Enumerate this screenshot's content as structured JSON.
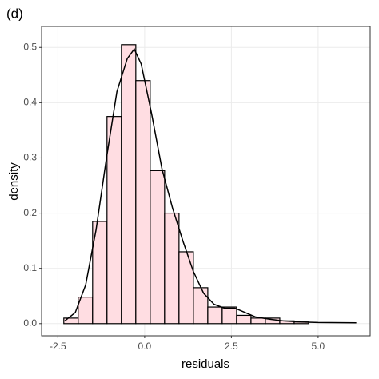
{
  "chart_data": {
    "type": "histogram",
    "title": "(d)",
    "x_label": "residuals",
    "y_label": "density",
    "bins": [
      -2.33,
      -1.915,
      -1.5,
      -1.085,
      -0.67,
      -0.255,
      0.16,
      0.575,
      0.99,
      1.405,
      1.82,
      2.235,
      2.65,
      3.065,
      3.48,
      3.895,
      4.31,
      4.725
    ],
    "values": [
      0.01,
      0.048,
      0.185,
      0.375,
      0.505,
      0.44,
      0.277,
      0.2,
      0.13,
      0.065,
      0.03,
      0.03,
      0.015,
      0.01,
      0.01,
      0.005,
      0.003
    ],
    "color": "#ffdde2",
    "edge_color": "#000000",
    "density": {
      "x": [
        -2.3,
        -2.0,
        -1.7,
        -1.4,
        -1.1,
        -0.8,
        -0.5,
        -0.3,
        -0.1,
        0.2,
        0.5,
        0.8,
        1.1,
        1.4,
        1.7,
        2.0,
        2.3,
        2.6,
        2.9,
        3.2,
        3.6,
        4.0,
        4.5,
        5.0,
        6.1
      ],
      "y": [
        0.005,
        0.02,
        0.07,
        0.17,
        0.3,
        0.42,
        0.48,
        0.497,
        0.47,
        0.38,
        0.28,
        0.21,
        0.15,
        0.095,
        0.055,
        0.035,
        0.028,
        0.028,
        0.02,
        0.012,
        0.008,
        0.005,
        0.003,
        0.002,
        0.0015
      ],
      "color": "#000000"
    },
    "xlim": [
      -2.97,
      6.5
    ],
    "ylim": [
      -0.022,
      0.538
    ],
    "xticks": [
      -2.5,
      {
        "value": 0,
        "label": "0.0"
      },
      2.5,
      {
        "value": 5,
        "label": "5.0"
      }
    ],
    "yticks": [
      {
        "value": 0,
        "label": "0.0"
      },
      0.1,
      0.2,
      0.3,
      0.4,
      0.5
    ],
    "grid": true
  }
}
